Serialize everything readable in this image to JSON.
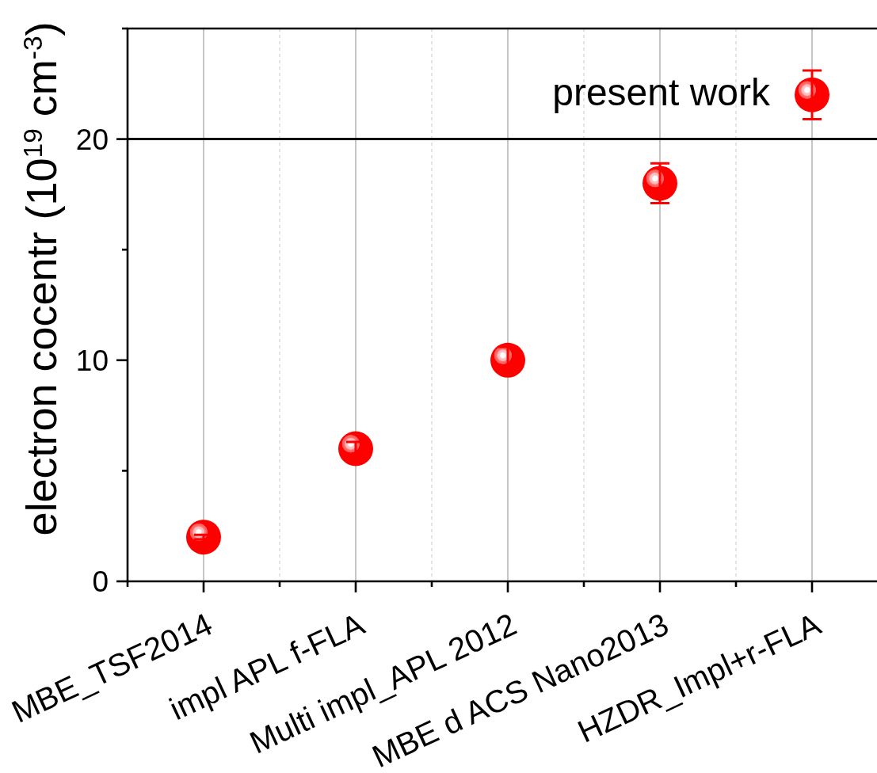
{
  "chart_data": {
    "type": "scatter",
    "ylabel": "electron cocentr (10$^{19}$ cm$^{-3}$)",
    "categories": [
      "MBE_TSF2014",
      "impl APL f-FLA",
      "Multi impl_APL 2012",
      "MBE d ACS Nano2013",
      "HZDR_Impl+r-FLA"
    ],
    "series": [
      {
        "color": "#ff0000",
        "values": [
          2,
          6,
          10,
          18,
          22
        ],
        "errors": [
          0.1,
          0.3,
          0.6,
          0.9,
          1.1
        ]
      }
    ],
    "ylim": [
      0,
      25
    ],
    "yticks": [
      0,
      {
        "value": 5,
        "label": null
      },
      10,
      {
        "value": 15,
        "label": null
      },
      20,
      {
        "value": 25,
        "label": null
      }
    ],
    "grid": "x",
    "marker": "circle",
    "ref_lines": [
      {
        "axis": "y",
        "value": 20,
        "color": "#000000"
      }
    ],
    "annotations": [
      {
        "text": "present work",
        "x": "HZDR_Impl+r-FLA",
        "y": 22
      }
    ]
  }
}
